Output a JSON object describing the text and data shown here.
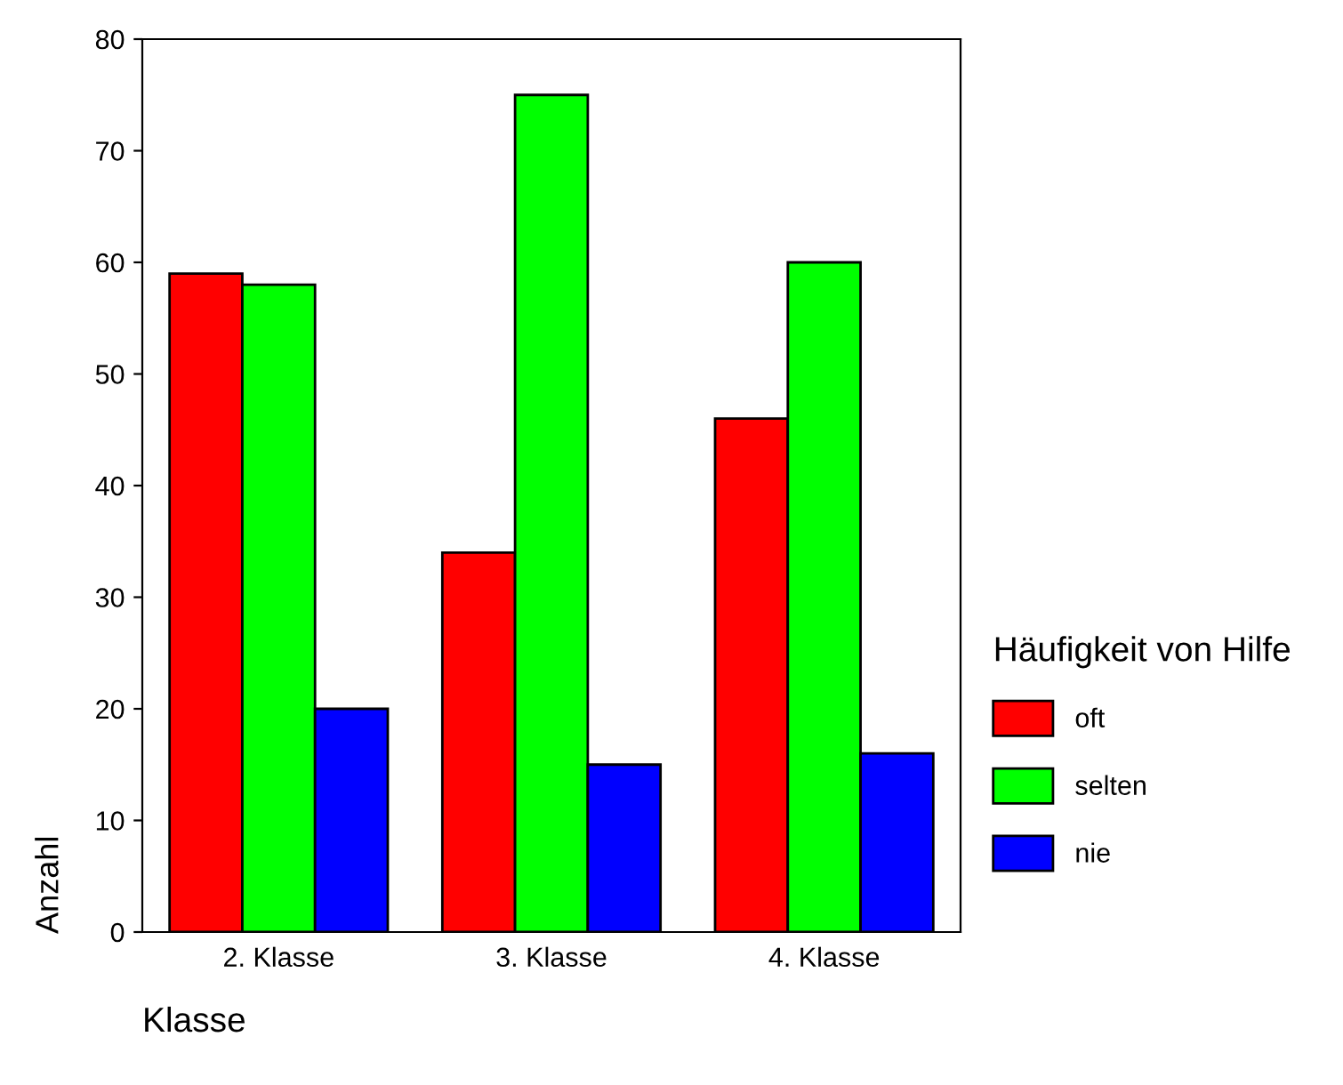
{
  "chart_data": {
    "type": "bar",
    "xlabel": "Klasse",
    "ylabel": "Anzahl",
    "legend_title": "Häufigkeit von Hilfe",
    "categories": [
      "2. Klasse",
      "3. Klasse",
      "4. Klasse"
    ],
    "series": [
      {
        "name": "oft",
        "color": "#ff0000",
        "values": [
          59,
          34,
          46
        ]
      },
      {
        "name": "selten",
        "color": "#00ff00",
        "values": [
          58,
          75,
          60
        ]
      },
      {
        "name": "nie",
        "color": "#0000ff",
        "values": [
          20,
          15,
          16
        ]
      }
    ],
    "ylim": [
      0,
      80
    ],
    "yticks": [
      0,
      10,
      20,
      30,
      40,
      50,
      60,
      70,
      80
    ],
    "grid": false,
    "legend": "right"
  }
}
